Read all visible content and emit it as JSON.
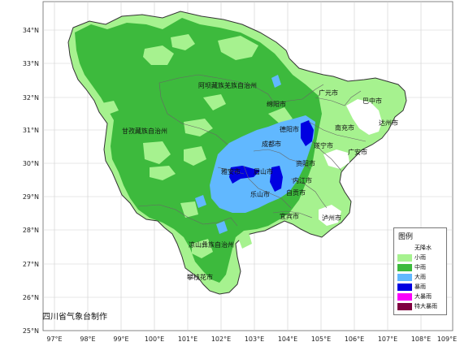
{
  "map": {
    "lat_labels": [
      "34°N",
      "33°N",
      "32°N",
      "31°N",
      "30°N",
      "29°N",
      "28°N",
      "27°N",
      "26°N",
      "25°N"
    ],
    "lon_labels": [
      "97°E",
      "98°E",
      "99°E",
      "100°E",
      "101°E",
      "102°E",
      "103°E",
      "104°E",
      "105°E",
      "106°E",
      "107°E",
      "108°E",
      "109°E"
    ],
    "prefectures": [
      {
        "id": "aba",
        "name": "阿坝藏族羌族自治州"
      },
      {
        "id": "ganzi",
        "name": "甘孜藏族自治州"
      },
      {
        "id": "liangshan",
        "name": "凉山彝族自治州"
      }
    ],
    "cities": [
      {
        "id": "guangyuan",
        "name": "广元市"
      },
      {
        "id": "bazhong",
        "name": "巴中市"
      },
      {
        "id": "mianyang",
        "name": "绵阳市"
      },
      {
        "id": "dazhou",
        "name": "达州市"
      },
      {
        "id": "deyang",
        "name": "德阳市"
      },
      {
        "id": "nanchong",
        "name": "南充市"
      },
      {
        "id": "chengdu",
        "name": "成都市"
      },
      {
        "id": "suining",
        "name": "遂宁市"
      },
      {
        "id": "guangan",
        "name": "广安市"
      },
      {
        "id": "ziyang",
        "name": "资阳市"
      },
      {
        "id": "yaan",
        "name": "雅安市"
      },
      {
        "id": "meishan",
        "name": "眉山市"
      },
      {
        "id": "neijiang",
        "name": "内江市"
      },
      {
        "id": "leshan",
        "name": "乐山市"
      },
      {
        "id": "zigong",
        "name": "自贡市"
      },
      {
        "id": "yibin",
        "name": "宜宾市"
      },
      {
        "id": "luzhou",
        "name": "泸州市"
      },
      {
        "id": "panzhihua",
        "name": "攀枝花市"
      }
    ]
  },
  "legend": {
    "title": "图例",
    "items": [
      {
        "label": "无降水",
        "color": "#ffffff"
      },
      {
        "label": "小雨",
        "color": "#a6f28f"
      },
      {
        "label": "中雨",
        "color": "#3dba3d"
      },
      {
        "label": "大雨",
        "color": "#61b8ff"
      },
      {
        "label": "暴雨",
        "color": "#0000e1"
      },
      {
        "label": "大暴雨",
        "color": "#fa00fa"
      },
      {
        "label": "特大暴雨",
        "color": "#800040"
      }
    ]
  },
  "credit": "四川省气象台制作"
}
